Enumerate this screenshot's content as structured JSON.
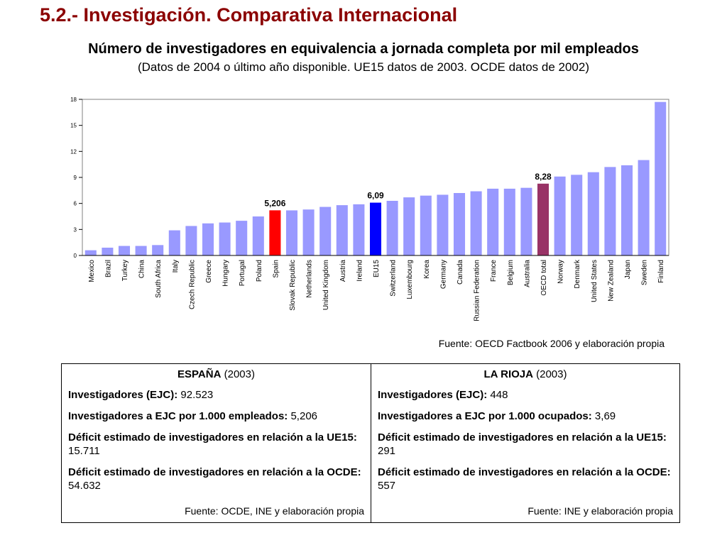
{
  "slide_title": "5.2.- Investigación. Comparativa Internacional",
  "chart_title": "Número de investigadores en equivalencia a jornada completa por mil empleados",
  "chart_subtitle": "(Datos de 2004 o último año disponible. UE15 datos de 2003. OCDE datos de 2002)",
  "chart_source": "Fuente: OECD Factbook 2006 y elaboración propia",
  "colors": {
    "bar_default": "#9999ff",
    "bar_spain": "#ff0000",
    "bar_eu15": "#0000ff",
    "bar_oecd": "#993366",
    "slide_title": "#8b0000"
  },
  "chart_data": {
    "type": "bar",
    "title": "",
    "xlabel": "",
    "ylabel": "",
    "ylim": [
      0,
      18
    ],
    "yticks": [
      0,
      3,
      6,
      9,
      12,
      15,
      18
    ],
    "grid": false,
    "categories": [
      "Mexico",
      "Brazil",
      "Turkey",
      "China",
      "South Africa",
      "Italy",
      "Czech Republic",
      "Greece",
      "Hungary",
      "Portugal",
      "Poland",
      "Spain",
      "Slovak Republic",
      "Netherlands",
      "United Kingdom",
      "Austria",
      "Ireland",
      "EU15",
      "Switzerland",
      "Luxembourg",
      "Korea",
      "Germany",
      "Canada",
      "Russian Federation",
      "France",
      "Belgium",
      "Australia",
      "OECD total",
      "Norway",
      "Denmark",
      "United States",
      "New Zealand",
      "Japan",
      "Sweden",
      "Finland"
    ],
    "values": [
      0.6,
      0.9,
      1.1,
      1.1,
      1.2,
      2.9,
      3.4,
      3.7,
      3.8,
      4.0,
      4.5,
      5.206,
      5.2,
      5.3,
      5.6,
      5.8,
      5.9,
      6.09,
      6.3,
      6.7,
      6.9,
      7.0,
      7.2,
      7.4,
      7.7,
      7.7,
      7.8,
      8.28,
      9.1,
      9.3,
      9.6,
      10.2,
      10.4,
      11.0,
      17.7
    ],
    "data_labels": [
      {
        "category": "Spain",
        "text": "5,206"
      },
      {
        "category": "EU15",
        "text": "6,09"
      },
      {
        "category": "OECD total",
        "text": "8,28"
      }
    ],
    "highlight_colors": {
      "Spain": "#ff0000",
      "EU15": "#0000ff",
      "OECD total": "#993366"
    }
  },
  "table": {
    "left": {
      "header_bold": "ESPAÑA",
      "header_rest": " (2003)",
      "rows": [
        {
          "label": "Investigadores (EJC):",
          "value": " 92.523"
        },
        {
          "label": "Investigadores a EJC por 1.000 empleados:",
          "value": " 5,206"
        },
        {
          "label": "Déficit estimado de investigadores en relación a la UE15:",
          "value": " 15.711"
        },
        {
          "label": "Déficit estimado de investigadores en relación a la OCDE:",
          "value": " 54.632"
        }
      ],
      "source": "Fuente: OCDE,  INE y elaboración propia"
    },
    "right": {
      "header_bold": "LA RIOJA",
      "header_rest": " (2003)",
      "rows": [
        {
          "label": "Investigadores (EJC):",
          "value": " 448"
        },
        {
          "label": "Investigadores a EJC por 1.000 ocupados:",
          "value": " 3,69"
        },
        {
          "label": "Déficit estimado de investigadores en relación a la UE15:",
          "value": " 291"
        },
        {
          "label": "Déficit estimado de investigadores en relación a la OCDE:",
          "value": " 557"
        }
      ],
      "source": "Fuente: INE y elaboración propia"
    }
  }
}
